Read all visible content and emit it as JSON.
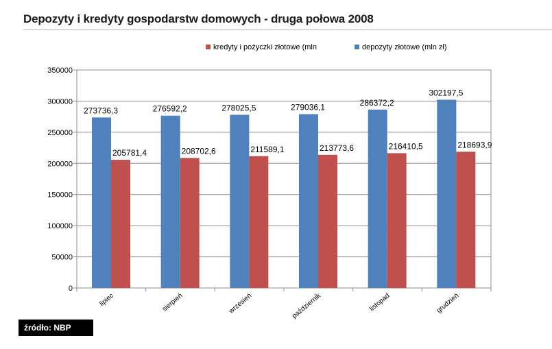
{
  "header": {
    "title": "Depozyty i kredyty gospodarstw domowych - druga połowa 2008"
  },
  "footer": {
    "source": "źródło: NBP"
  },
  "chart_data": {
    "type": "bar",
    "title": "Depozyty i kredyty gospodarstw domowych - druga połowa 2008",
    "xlabel": "",
    "ylabel": "",
    "categories": [
      "lipiec",
      "sierpień",
      "wrzesień",
      "październik",
      "listopad",
      "grudzień"
    ],
    "series": [
      {
        "name": "depozyty złotowe (mln zł)",
        "color": "#4f81bd",
        "values": [
          273736.3,
          276592.2,
          278025.5,
          279036.1,
          286372.2,
          302197.5
        ],
        "labels": [
          "273736,3",
          "276592,2",
          "278025,5",
          "279036,1",
          "286372,2",
          "302197,5"
        ]
      },
      {
        "name": "kredyty i pożyczki złotowe (mln",
        "color": "#c0504d",
        "values": [
          205781.4,
          208702.6,
          211589.1,
          213773.6,
          216410.5,
          218693.9
        ],
        "labels": [
          "205781,4",
          "208702,6",
          "211589,1",
          "213773,6",
          "216410,5",
          "218693,9"
        ]
      }
    ],
    "ylim": [
      0,
      350000
    ],
    "yticks": [
      0,
      50000,
      100000,
      150000,
      200000,
      250000,
      300000,
      350000
    ],
    "ytick_labels": [
      "0",
      "50000",
      "100000",
      "150000",
      "200000",
      "250000",
      "300000",
      "350000"
    ],
    "legend_order": [
      1,
      0
    ],
    "legend_position": "top",
    "grid": true
  }
}
